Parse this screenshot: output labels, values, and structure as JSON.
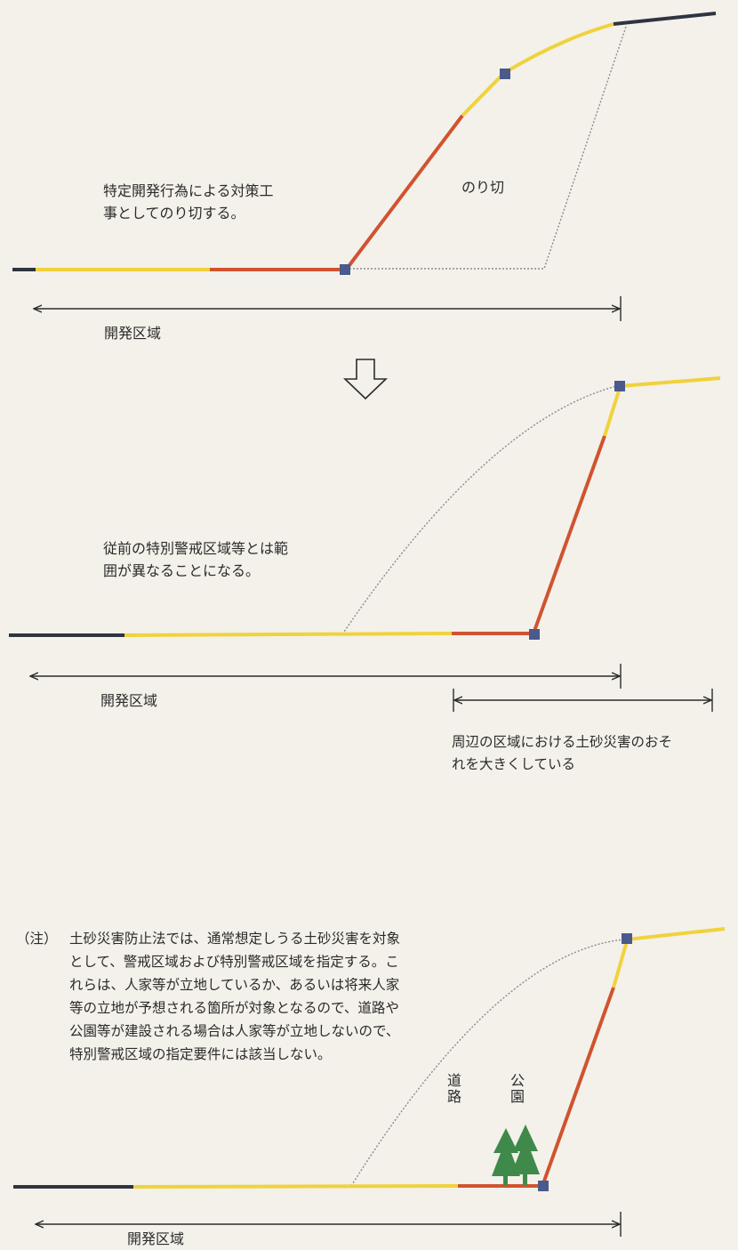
{
  "stage1": {
    "caption_line1": "特定開発行為による対策工",
    "caption_line2": "事としてのり切する。",
    "cut_label": "のり切",
    "area_label": "開発区域"
  },
  "stage2": {
    "caption_line1": "従前の特別警戒区域等とは範",
    "caption_line2": "囲が異なることになる。",
    "area_label": "開発区域",
    "surrounding_line1": "周辺の区域における土砂災害のおそ",
    "surrounding_line2": "れを大きくしている"
  },
  "stage3": {
    "area_label": "開発区域",
    "road_label": "道路",
    "park_label": "公園"
  },
  "note": {
    "mark": "（注）",
    "text": "土砂災害防止法では、通常想定しうる土砂災害を対象として、警戒区域および特別警戒区域を指定する。これらは、人家等が立地しているか、あるいは将来人家等の立地が予想される箇所が対象となるので、道路や公園等が建設される場合は人家等が立地しないので、特別警戒区域の指定要件には該当しない。"
  },
  "colors": {
    "yellow_zone": "#f0d23c",
    "red_zone": "#d0532f",
    "ground": "#2e3440",
    "node": "#4a5a8c",
    "tree": "#3f8a4a"
  },
  "icons": [
    "down-arrow-icon",
    "tree-icon"
  ]
}
